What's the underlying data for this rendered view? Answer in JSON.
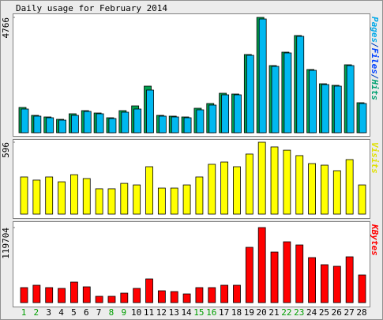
{
  "chart_data": [
    {
      "type": "bar",
      "title": "Daily usage for February 2014",
      "ylim": [
        0,
        4766
      ],
      "yticks": [
        4766
      ],
      "axis_label": [
        {
          "text": "Pages",
          "color": "#00a8e8"
        },
        {
          "text": "/",
          "color": "#0040c0"
        },
        {
          "text": "Files",
          "color": "#0040ff"
        },
        {
          "text": "/",
          "color": "#0040c0"
        },
        {
          "text": "Hits",
          "color": "#00a070"
        }
      ],
      "series": [
        {
          "color": "#00a050",
          "values": [
            1045,
            718,
            653,
            555,
            784,
            914,
            816,
            620,
            914,
            1110,
            1926,
            718,
            686,
            653,
            1012,
            1208,
            1632,
            1600,
            3232,
            4766,
            2775,
            3330,
            4016,
            2612,
            2024,
            1959,
            2808,
            1241
          ]
        },
        {
          "color": "#00b8f0",
          "values": [
            980,
            686,
            620,
            522,
            718,
            881,
            784,
            588,
            849,
            980,
            1763,
            686,
            653,
            620,
            947,
            1143,
            1567,
            1567,
            3199,
            4700,
            2742,
            3297,
            3983,
            2579,
            1991,
            1926,
            2775,
            1208
          ]
        }
      ]
    },
    {
      "type": "bar",
      "ylim": [
        0,
        596
      ],
      "yticks": [
        596
      ],
      "axis_label": [
        {
          "text": "Visits",
          "color": "#e0e000"
        }
      ],
      "series": [
        {
          "color": "#ffff00",
          "values": [
            308,
            282,
            308,
            268,
            327,
            295,
            210,
            210,
            255,
            242,
            393,
            216,
            216,
            242,
            308,
            413,
            432,
            393,
            498,
            596,
            557,
            530,
            485,
            419,
            406,
            360,
            452,
            242
          ]
        }
      ]
    },
    {
      "type": "bar",
      "ylim": [
        0,
        119704
      ],
      "yticks": [
        119704
      ],
      "axis_label": [
        {
          "text": "KBytes",
          "color": "#ff0000"
        }
      ],
      "categories": [
        "1",
        "2",
        "3",
        "4",
        "5",
        "6",
        "7",
        "8",
        "9",
        "10",
        "11",
        "12",
        "13",
        "14",
        "15",
        "16",
        "17",
        "18",
        "19",
        "20",
        "21",
        "22",
        "23",
        "24",
        "25",
        "26",
        "27",
        "28"
      ],
      "label_colors": [
        "#00a000",
        "#00a000",
        "#000000",
        "#000000",
        "#000000",
        "#000000",
        "#000000",
        "#00a000",
        "#00a000",
        "#000000",
        "#000000",
        "#000000",
        "#000000",
        "#000000",
        "#00a000",
        "#00a000",
        "#000000",
        "#000000",
        "#000000",
        "#000000",
        "#000000",
        "#00a000",
        "#00a000",
        "#000000",
        "#000000",
        "#000000",
        "#000000",
        "#000000"
      ],
      "series": [
        {
          "color": "#ff0000",
          "values": [
            23940,
            27720,
            23940,
            22680,
            32760,
            25200,
            10080,
            10080,
            15120,
            22680,
            37800,
            18900,
            17640,
            13860,
            23940,
            23940,
            27720,
            27720,
            88200,
            119704,
            80640,
            97020,
            91980,
            71820,
            60480,
            57960,
            73080,
            44100
          ]
        }
      ]
    }
  ]
}
